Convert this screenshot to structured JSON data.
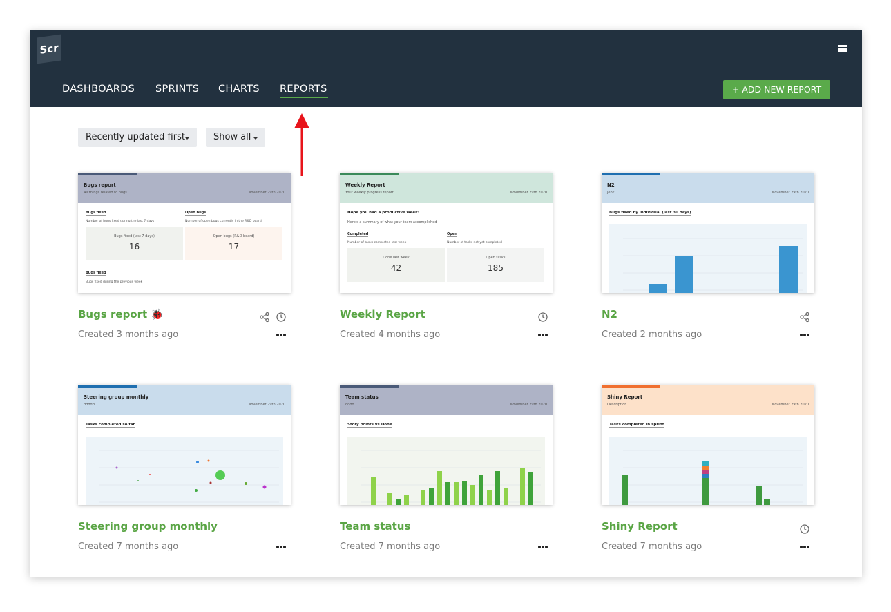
{
  "nav": {
    "logo": "Scr",
    "items": [
      "DASHBOARDS",
      "SPRINTS",
      "CHARTS",
      "REPORTS"
    ],
    "button": "+ ADD NEW REPORT"
  },
  "filters": [
    "Recently updated first",
    "Show all"
  ],
  "reports": [
    {
      "title": "Bugs report 🐞",
      "created": "Created 3 months ago",
      "icons": [
        "share",
        "clock"
      ],
      "band": "#aeb3c6",
      "accent": "#4a5a78",
      "preview": {
        "title": "Bugs report",
        "subtitle": "All things related to bugs",
        "date": "November 29th 2020",
        "kind": "stats",
        "cols": [
          {
            "label": "Bugs fixed",
            "desc": "Number of bugs fixed during the last 7 days",
            "tile": "Bugs fixed (last 7 days)",
            "value": 16,
            "bg": "#f0f2ee"
          },
          {
            "label": "Open bugs",
            "desc": "Number of open bugs currently in the R&D board",
            "tile": "Open bugs (R&D board)",
            "value": 17,
            "bg": "#fdf4ee"
          }
        ],
        "footer": {
          "label": "Bugs fixed",
          "desc": "Bugs fixed during the previous week"
        }
      }
    },
    {
      "title": "Weekly Report",
      "created": "Created 4 months ago",
      "icons": [
        "clock"
      ],
      "band": "#cfe6dc",
      "accent": "#3a8a5a",
      "preview": {
        "title": "Weekly Report",
        "subtitle": "Your weekly progress report",
        "date": "November 29th 2020",
        "kind": "stats",
        "heading": "Hope you had a productive week!",
        "intro": "Here's a summary of what your team accomplished",
        "cols": [
          {
            "label": "Completed",
            "desc": "Number of tasks completed last week",
            "tile": "Done last week",
            "value": 42,
            "bg": "#f0f2ee"
          },
          {
            "label": "Open",
            "desc": "Number of tasks not yet completed",
            "tile": "Open tasks",
            "value": 185,
            "bg": "#f3f4f3"
          }
        ]
      }
    },
    {
      "title": "N2",
      "created": "Created 2 months ago",
      "icons": [
        "share"
      ],
      "band": "#c9dcec",
      "accent": "#1f6fb0",
      "preview": {
        "title": "N2",
        "subtitle": "jebk",
        "date": "November 29th 2020",
        "kind": "bars",
        "heading": "Bugs fixed by individual (last 30 days)"
      }
    },
    {
      "title": "Steering group monthly",
      "created": "Created 7 months ago",
      "icons": [],
      "band": "#c9dcec",
      "accent": "#1f6fb0",
      "preview": {
        "title": "Steering group monthly",
        "subtitle": "ddddd",
        "date": "November 29th 2020",
        "kind": "scatter",
        "heading": "Tasks completed so far"
      }
    },
    {
      "title": "Team status",
      "created": "Created 7 months ago",
      "icons": [],
      "band": "#aeb3c6",
      "accent": "#4a5a78",
      "preview": {
        "title": "Team status",
        "subtitle": "dddd",
        "date": "November 29th 2020",
        "kind": "greenbars",
        "heading": "Story points vs Done"
      }
    },
    {
      "title": "Shiny Report",
      "created": "Created 7 months ago",
      "icons": [
        "clock"
      ],
      "band": "#fde1c9",
      "accent": "#f07030",
      "preview": {
        "title": "Shiny Report",
        "subtitle": "Description",
        "date": "November 29th 2020",
        "kind": "stacked",
        "heading": "Tasks completed in sprint"
      }
    }
  ]
}
